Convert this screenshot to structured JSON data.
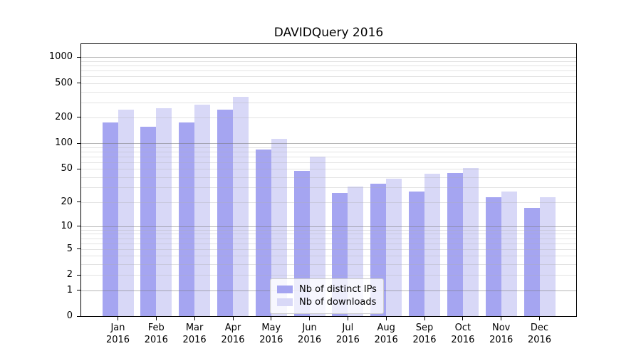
{
  "chart_data": {
    "type": "bar",
    "title": "DAVIDQuery 2016",
    "months": [
      "Jan",
      "Feb",
      "Mar",
      "Apr",
      "May",
      "Jun",
      "Jul",
      "Aug",
      "Sep",
      "Oct",
      "Nov",
      "Dec"
    ],
    "year": "2016",
    "series": [
      {
        "name": "Nb of distinct IPs",
        "color": "#a5a5f1",
        "values": [
          175,
          155,
          175,
          245,
          85,
          47,
          26,
          33,
          27,
          45,
          23,
          17
        ]
      },
      {
        "name": "Nb of downloads",
        "color": "#d8d8f7",
        "values": [
          245,
          258,
          280,
          345,
          112,
          70,
          31,
          38,
          44,
          51,
          27,
          23
        ]
      }
    ],
    "yscale": "log1p",
    "ylim": [
      0,
      1420
    ],
    "yticks": [
      0,
      1,
      2,
      5,
      10,
      20,
      50,
      100,
      200,
      500,
      1000
    ],
    "minor_gridline_values": [
      2,
      3,
      4,
      5,
      6,
      7,
      8,
      9,
      20,
      30,
      40,
      50,
      60,
      70,
      80,
      90,
      200,
      300,
      400,
      500,
      600,
      700,
      800,
      900
    ],
    "major_gridline_values": [
      1,
      10,
      100,
      1000
    ],
    "grid": true,
    "legend_position": "lower center",
    "layout_colors": {
      "major_grid": "rgba(120,120,120,0.55)",
      "minor_grid": "rgba(175,175,175,0.35)",
      "spine": "#000000",
      "background": "#ffffff"
    }
  }
}
